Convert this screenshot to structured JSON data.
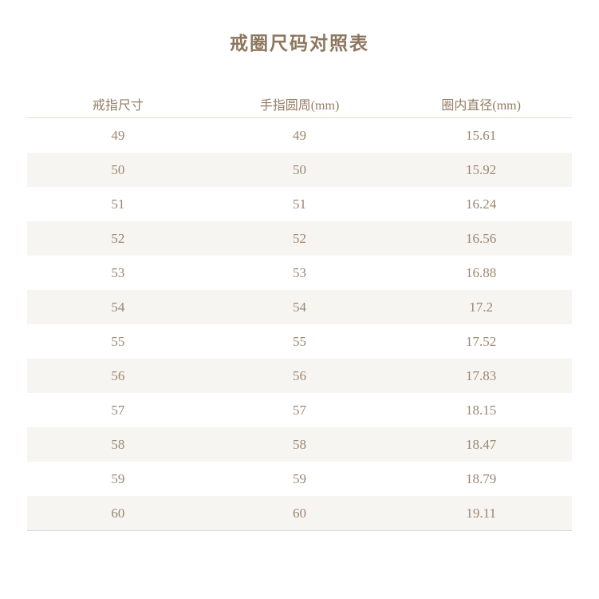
{
  "title": "戒圈尺码对照表",
  "table": {
    "headers": [
      "戒指尺寸",
      "手指圆周(mm)",
      "圈内直径(mm)"
    ],
    "rows": [
      [
        "49",
        "49",
        "15.61"
      ],
      [
        "50",
        "50",
        "15.92"
      ],
      [
        "51",
        "51",
        "16.24"
      ],
      [
        "52",
        "52",
        "16.56"
      ],
      [
        "53",
        "53",
        "16.88"
      ],
      [
        "54",
        "54",
        "17.2"
      ],
      [
        "55",
        "55",
        "17.52"
      ],
      [
        "56",
        "56",
        "17.83"
      ],
      [
        "57",
        "57",
        "18.15"
      ],
      [
        "58",
        "58",
        "18.47"
      ],
      [
        "59",
        "59",
        "18.79"
      ],
      [
        "60",
        "60",
        "19.11"
      ]
    ]
  },
  "colors": {
    "background": "#ffffff",
    "title_text": "#8d765e",
    "header_text": "#937c65",
    "cell_text": "#9c8670",
    "stripe_row": "#f7f5f2",
    "header_rule": "#e8dcc9",
    "bottom_rule": "#d9d7d4"
  },
  "chart_data": {
    "type": "table",
    "title": "戒圈尺码对照表",
    "columns": [
      "戒指尺寸",
      "手指圆周(mm)",
      "圈内直径(mm)"
    ],
    "rows": [
      [
        49,
        49,
        15.61
      ],
      [
        50,
        50,
        15.92
      ],
      [
        51,
        51,
        16.24
      ],
      [
        52,
        52,
        16.56
      ],
      [
        53,
        53,
        16.88
      ],
      [
        54,
        54,
        17.2
      ],
      [
        55,
        55,
        17.52
      ],
      [
        56,
        56,
        17.83
      ],
      [
        57,
        57,
        18.15
      ],
      [
        58,
        58,
        18.47
      ],
      [
        59,
        59,
        18.79
      ],
      [
        60,
        60,
        19.11
      ]
    ],
    "layout_hints": {
      "zebra_striping": "even rows shaded",
      "alignment": "all columns centered",
      "grid": "header underline and table bottom rule only"
    }
  }
}
